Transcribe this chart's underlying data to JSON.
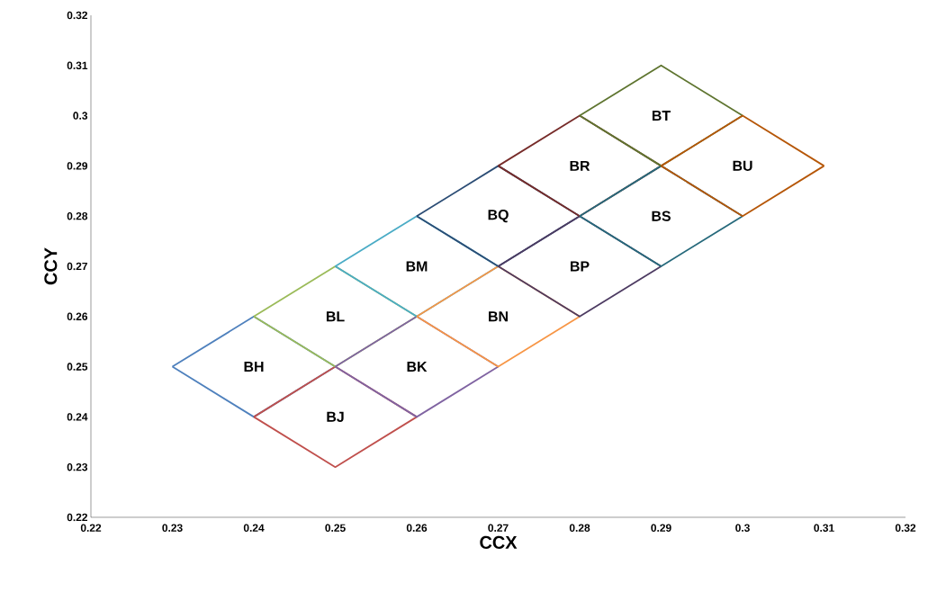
{
  "chart_data": {
    "type": "line",
    "xlabel": "CCX",
    "ylabel": "CCY",
    "xlim": [
      0.22,
      0.32
    ],
    "ylim": [
      0.22,
      0.32
    ],
    "xticks": [
      0.22,
      0.23,
      0.24,
      0.25,
      0.26,
      0.27,
      0.28,
      0.29,
      0.3,
      0.31,
      0.32
    ],
    "yticks": [
      0.22,
      0.23,
      0.24,
      0.25,
      0.26,
      0.27,
      0.28,
      0.29,
      0.3,
      0.31,
      0.32
    ],
    "grid": false,
    "marker": "none",
    "line_style": "solid",
    "series": [
      {
        "name": "BH",
        "color": "#4f81bd",
        "x": [
          0.23,
          0.24,
          0.25
        ],
        "values": [
          0.25,
          0.26,
          0.25
        ]
      },
      {
        "color": "#4f81bd",
        "x": [
          0.23,
          0.24,
          0.25
        ],
        "values": [
          0.25,
          0.24,
          0.25
        ]
      },
      {
        "name": "BJ",
        "color": "#c0504d",
        "x": [
          0.24,
          0.25,
          0.26
        ],
        "values": [
          0.24,
          0.25,
          0.24
        ]
      },
      {
        "color": "#c0504d",
        "x": [
          0.24,
          0.25,
          0.26
        ],
        "values": [
          0.24,
          0.23,
          0.24
        ]
      },
      {
        "name": "BL",
        "color": "#9bbb59",
        "x": [
          0.24,
          0.25,
          0.26
        ],
        "values": [
          0.26,
          0.27,
          0.26
        ]
      },
      {
        "color": "#9bbb59",
        "x": [
          0.24,
          0.25,
          0.26
        ],
        "values": [
          0.26,
          0.25,
          0.26
        ]
      },
      {
        "name": "BK",
        "color": "#8064a2",
        "x": [
          0.25,
          0.26,
          0.27
        ],
        "values": [
          0.25,
          0.26,
          0.25
        ]
      },
      {
        "color": "#8064a2",
        "x": [
          0.25,
          0.26,
          0.27
        ],
        "values": [
          0.25,
          0.24,
          0.25
        ]
      },
      {
        "name": "BM",
        "color": "#4bacc6",
        "x": [
          0.25,
          0.26,
          0.27
        ],
        "values": [
          0.27,
          0.28,
          0.27
        ]
      },
      {
        "color": "#4bacc6",
        "x": [
          0.25,
          0.26,
          0.27
        ],
        "values": [
          0.27,
          0.26,
          0.27
        ]
      },
      {
        "name": "BN",
        "color": "#f79646",
        "x": [
          0.26,
          0.27,
          0.28
        ],
        "values": [
          0.26,
          0.27,
          0.26
        ]
      },
      {
        "color": "#f79646",
        "x": [
          0.26,
          0.27,
          0.28
        ],
        "values": [
          0.26,
          0.25,
          0.26
        ]
      },
      {
        "name": "BQ",
        "color": "#2c4d75",
        "x": [
          0.26,
          0.27,
          0.28
        ],
        "values": [
          0.28,
          0.29,
          0.28
        ]
      },
      {
        "color": "#2c4d75",
        "x": [
          0.26,
          0.27,
          0.28
        ],
        "values": [
          0.28,
          0.27,
          0.28
        ]
      },
      {
        "name": "BP",
        "color": "#4d3b62",
        "x": [
          0.27,
          0.28,
          0.29
        ],
        "values": [
          0.27,
          0.28,
          0.27
        ]
      },
      {
        "color": "#4d3b62",
        "x": [
          0.27,
          0.28,
          0.29
        ],
        "values": [
          0.27,
          0.26,
          0.27
        ]
      },
      {
        "name": "BR",
        "color": "#772c2a",
        "x": [
          0.27,
          0.28,
          0.29
        ],
        "values": [
          0.29,
          0.3,
          0.29
        ]
      },
      {
        "color": "#772c2a",
        "x": [
          0.27,
          0.28,
          0.29
        ],
        "values": [
          0.29,
          0.28,
          0.29
        ]
      },
      {
        "name": "BS",
        "color": "#276a7c",
        "x": [
          0.28,
          0.29,
          0.3
        ],
        "values": [
          0.28,
          0.29,
          0.28
        ]
      },
      {
        "color": "#276a7c",
        "x": [
          0.28,
          0.29,
          0.3
        ],
        "values": [
          0.28,
          0.27,
          0.28
        ]
      },
      {
        "name": "BT",
        "color": "#5f7530",
        "x": [
          0.28,
          0.29,
          0.3
        ],
        "values": [
          0.3,
          0.31,
          0.3
        ]
      },
      {
        "color": "#5f7530",
        "x": [
          0.28,
          0.29,
          0.3
        ],
        "values": [
          0.3,
          0.29,
          0.3
        ]
      },
      {
        "name": "BU",
        "color": "#b65708",
        "x": [
          0.29,
          0.3,
          0.31
        ],
        "values": [
          0.29,
          0.3,
          0.29
        ]
      },
      {
        "color": "#b65708",
        "x": [
          0.29,
          0.3,
          0.31
        ],
        "values": [
          0.29,
          0.28,
          0.29
        ]
      }
    ]
  }
}
